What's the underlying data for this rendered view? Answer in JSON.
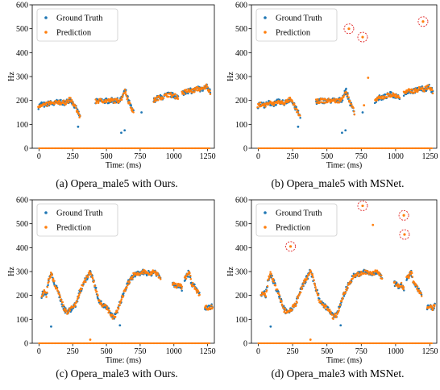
{
  "colors": {
    "ground_truth": "#1f77b4",
    "prediction": "#ff7f0e",
    "circle": "#e02020"
  },
  "chart_data": [
    {
      "type": "scatter",
      "caption": "(a) Opera_male5 with Ours.",
      "xlabel": "Time: (ms)",
      "ylabel": "Hz",
      "xlim": [
        -50,
        1300
      ],
      "ylim": [
        0,
        600
      ],
      "xticks": [
        0,
        250,
        500,
        750,
        1000,
        1250
      ],
      "yticks": [
        0,
        100,
        200,
        300,
        400,
        500,
        600
      ],
      "legend": [
        "Ground Truth",
        "Prediction"
      ],
      "legend_position": "top-left",
      "contour": "male5",
      "gt_outliers": [
        [
          290,
          90
        ],
        [
          610,
          65
        ],
        [
          635,
          75
        ],
        [
          760,
          150
        ]
      ],
      "pred_outliers": [],
      "circled": []
    },
    {
      "type": "scatter",
      "caption": "(b) Opera_male5 with MSNet.",
      "xlabel": "Time: (ms)",
      "ylabel": "Hz",
      "xlim": [
        -50,
        1300
      ],
      "ylim": [
        0,
        600
      ],
      "xticks": [
        0,
        250,
        500,
        750,
        1000,
        1250
      ],
      "yticks": [
        0,
        100,
        200,
        300,
        400,
        500,
        600
      ],
      "legend": [
        "Ground Truth",
        "Prediction"
      ],
      "legend_position": "top-left",
      "contour": "male5",
      "gt_outliers": [
        [
          290,
          90
        ],
        [
          610,
          65
        ],
        [
          635,
          75
        ],
        [
          760,
          150
        ]
      ],
      "pred_outliers": [
        [
          800,
          295
        ],
        [
          770,
          180
        ]
      ],
      "circled": [
        [
          660,
          500
        ],
        [
          760,
          465
        ],
        [
          1200,
          530
        ]
      ]
    },
    {
      "type": "scatter",
      "caption": "(c) Opera_male3 with Ours.",
      "xlabel": "Time: (ms)",
      "ylabel": "Hz",
      "xlim": [
        -50,
        1300
      ],
      "ylim": [
        0,
        600
      ],
      "xticks": [
        0,
        250,
        500,
        750,
        1000,
        1250
      ],
      "yticks": [
        0,
        100,
        200,
        300,
        400,
        500,
        600
      ],
      "legend": [
        "Ground Truth",
        "Prediction"
      ],
      "legend_position": "top-left",
      "contour": "male3",
      "gt_outliers": [
        [
          90,
          70
        ],
        [
          600,
          75
        ]
      ],
      "pred_outliers": [
        [
          380,
          15
        ]
      ],
      "circled": []
    },
    {
      "type": "scatter",
      "caption": "(d) Opera_male3 with MSNet.",
      "xlabel": "Time: (ms)",
      "ylabel": "Hz",
      "xlim": [
        -50,
        1300
      ],
      "ylim": [
        0,
        600
      ],
      "xticks": [
        0,
        250,
        500,
        750,
        1000,
        1250
      ],
      "yticks": [
        0,
        100,
        200,
        300,
        400,
        500,
        600
      ],
      "legend": [
        "Ground Truth",
        "Prediction"
      ],
      "legend_position": "top-left",
      "contour": "male3",
      "gt_outliers": [
        [
          90,
          70
        ],
        [
          600,
          75
        ]
      ],
      "pred_outliers": [
        [
          380,
          15
        ],
        [
          835,
          495
        ]
      ],
      "circled": [
        [
          235,
          405
        ],
        [
          760,
          575
        ],
        [
          1060,
          535
        ],
        [
          1065,
          455
        ]
      ]
    }
  ]
}
